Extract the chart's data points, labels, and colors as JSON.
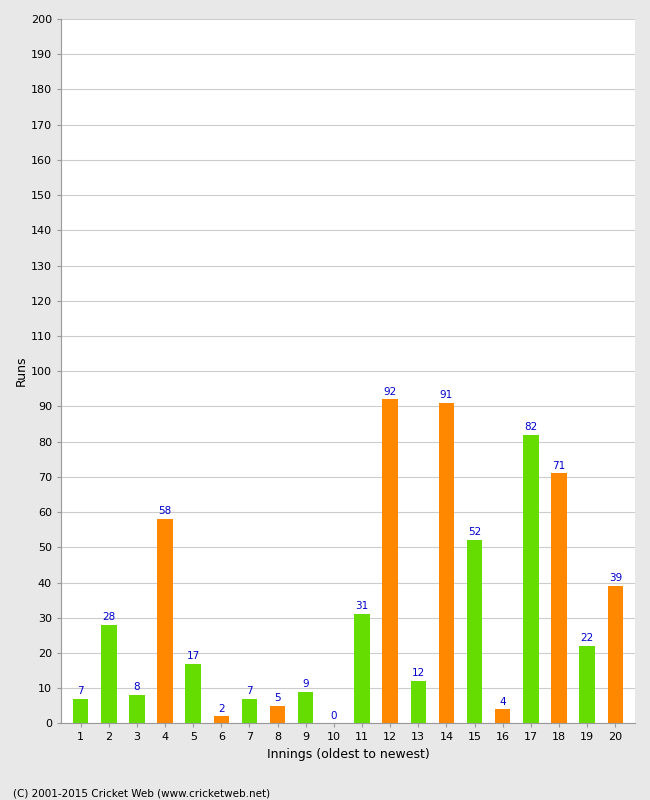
{
  "xlabel": "Innings (oldest to newest)",
  "ylabel": "Runs",
  "innings": [
    1,
    2,
    3,
    4,
    5,
    6,
    7,
    8,
    9,
    10,
    11,
    12,
    13,
    14,
    15,
    16,
    17,
    18,
    19,
    20
  ],
  "values": [
    7,
    28,
    8,
    58,
    17,
    2,
    7,
    5,
    9,
    0,
    31,
    92,
    12,
    91,
    52,
    4,
    82,
    71,
    22,
    39
  ],
  "colors": [
    "#66dd00",
    "#66dd00",
    "#66dd00",
    "#ff8800",
    "#66dd00",
    "#ff8800",
    "#66dd00",
    "#ff8800",
    "#66dd00",
    "#ff8800",
    "#66dd00",
    "#ff8800",
    "#66dd00",
    "#ff8800",
    "#66dd00",
    "#ff8800",
    "#66dd00",
    "#ff8800",
    "#66dd00",
    "#ff8800"
  ],
  "ylim": [
    0,
    200
  ],
  "yticks": [
    0,
    10,
    20,
    30,
    40,
    50,
    60,
    70,
    80,
    90,
    100,
    110,
    120,
    130,
    140,
    150,
    160,
    170,
    180,
    190,
    200
  ],
  "label_color": "#0000cc",
  "background_color": "#ffffff",
  "outer_background": "#e8e8e8",
  "grid_color": "#cccccc",
  "footer": "(C) 2001-2015 Cricket Web (www.cricketweb.net)"
}
